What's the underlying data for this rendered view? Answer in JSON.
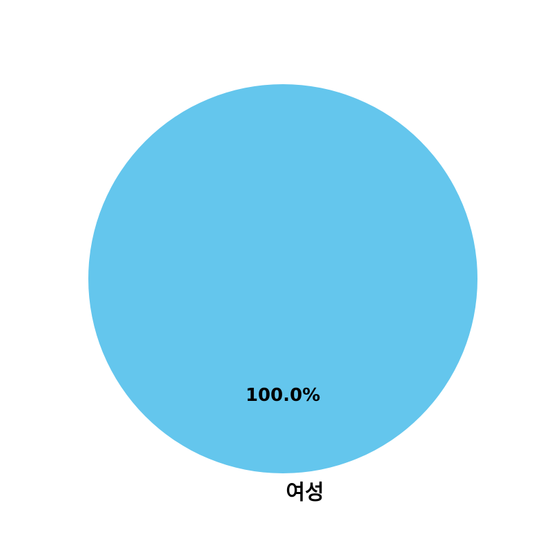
{
  "chart_data": {
    "type": "pie",
    "categories": [
      "여성"
    ],
    "values": [
      100.0
    ],
    "percent_labels": [
      "100.0%"
    ],
    "colors": [
      "#64c6ed"
    ],
    "title": "",
    "legend": false
  }
}
